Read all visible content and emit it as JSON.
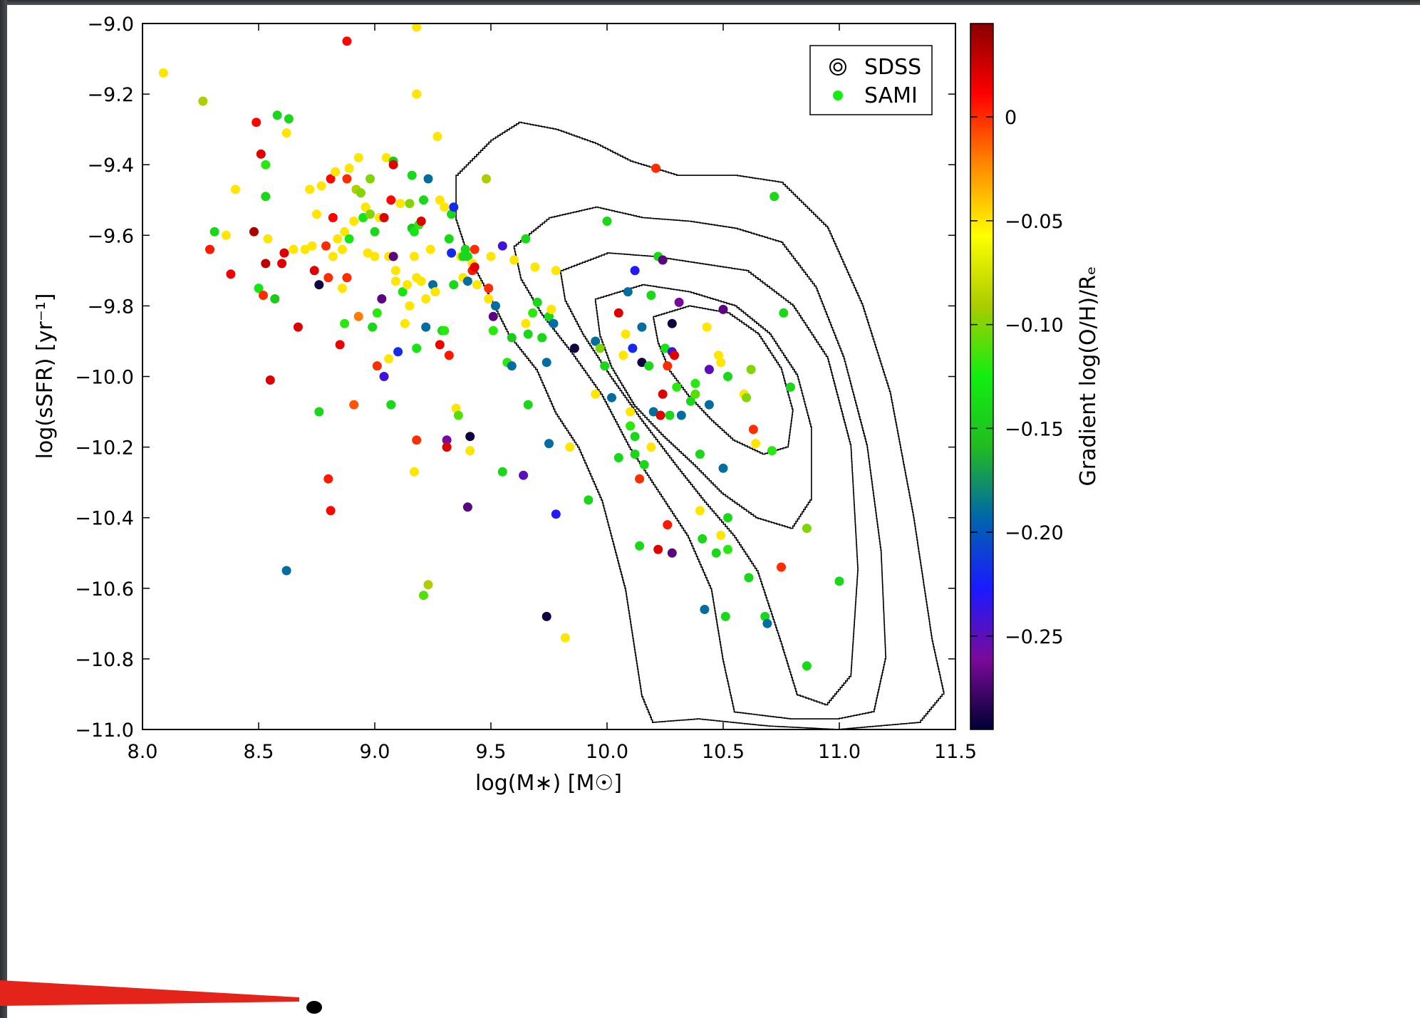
{
  "chart_data": {
    "type": "scatter",
    "xlabel": "log(M∗) [M☉]",
    "ylabel": "log(sSFR) [yr⁻¹]",
    "colorbar_label": "Gradient log(O/H)/Rₑ",
    "xlim": [
      8.0,
      11.5
    ],
    "ylim": [
      -11.0,
      -9.0
    ],
    "x_ticks": [
      "8.0",
      "8.5",
      "9.0",
      "9.5",
      "10.0",
      "10.5",
      "11.0",
      "11.5"
    ],
    "y_ticks": [
      "−11.0",
      "−10.8",
      "−10.6",
      "−10.4",
      "−10.2",
      "−10.0",
      "−9.8",
      "−9.6",
      "−9.4",
      "−9.2",
      "−9.0"
    ],
    "colorbar": {
      "range": [
        -0.295,
        0.045
      ],
      "ticks": [
        "0",
        "−0.05",
        "−0.10",
        "−0.15",
        "−0.20",
        "−0.25"
      ],
      "tick_values": [
        0,
        -0.05,
        -0.1,
        -0.15,
        -0.2,
        -0.25
      ],
      "stops": [
        "#000033",
        "#7a0a9a",
        "#1a1aff",
        "#0066aa",
        "#22bb22",
        "#11ee11",
        "#aacc00",
        "#ffff00",
        "#ff8800",
        "#ff0000",
        "#880000"
      ]
    },
    "legend": {
      "placement": "top-right",
      "entries": [
        {
          "label": "SDSS",
          "marker": "contour"
        },
        {
          "label": "SAMI",
          "marker": "dot",
          "color": "#11ee11"
        }
      ]
    },
    "grid": false,
    "sdss_contour_levels": 5,
    "sami_points": [
      [
        8.09,
        -9.14,
        -0.05
      ],
      [
        8.26,
        -9.22,
        -0.09
      ],
      [
        8.29,
        -9.64,
        0.005
      ],
      [
        8.31,
        -9.59,
        -0.14
      ],
      [
        8.36,
        -9.6,
        -0.05
      ],
      [
        8.38,
        -9.71,
        0.015
      ],
      [
        8.4,
        -9.47,
        -0.05
      ],
      [
        8.48,
        -9.59,
        0.035
      ],
      [
        8.49,
        -9.28,
        0.01
      ],
      [
        8.5,
        -9.75,
        -0.13
      ],
      [
        8.51,
        -9.37,
        0.02
      ],
      [
        8.52,
        -9.77,
        0.0
      ],
      [
        8.53,
        -9.68,
        0.03
      ],
      [
        8.53,
        -9.4,
        -0.12
      ],
      [
        8.53,
        -9.49,
        -0.14
      ],
      [
        8.54,
        -9.61,
        -0.05
      ],
      [
        8.55,
        -10.01,
        0.02
      ],
      [
        8.57,
        -9.78,
        -0.05
      ],
      [
        8.57,
        -9.78,
        -0.15
      ],
      [
        8.58,
        -9.26,
        -0.14
      ],
      [
        8.6,
        -9.68,
        0.02
      ],
      [
        8.61,
        -9.65,
        0.02
      ],
      [
        8.62,
        -10.55,
        -0.19
      ],
      [
        8.62,
        -9.31,
        -0.05
      ],
      [
        8.63,
        -9.27,
        -0.14
      ],
      [
        8.65,
        -9.64,
        -0.05
      ],
      [
        8.67,
        -9.86,
        0.02
      ],
      [
        8.7,
        -9.64,
        -0.05
      ],
      [
        8.72,
        -9.47,
        -0.05
      ],
      [
        8.73,
        -9.63,
        -0.05
      ],
      [
        8.74,
        -9.7,
        0.02
      ],
      [
        8.75,
        -9.54,
        -0.05
      ],
      [
        8.76,
        -10.1,
        -0.14
      ],
      [
        8.76,
        -9.74,
        -0.29
      ],
      [
        8.77,
        -9.46,
        -0.05
      ],
      [
        8.79,
        -9.63,
        0.0
      ],
      [
        8.8,
        -9.72,
        0.0
      ],
      [
        8.8,
        -10.29,
        0.005
      ],
      [
        8.81,
        -9.44,
        0.01
      ],
      [
        8.81,
        -10.38,
        0.01
      ],
      [
        8.82,
        -9.55,
        0.01
      ],
      [
        8.82,
        -9.66,
        -0.05
      ],
      [
        8.83,
        -9.42,
        -0.05
      ],
      [
        8.84,
        -9.61,
        -0.05
      ],
      [
        8.85,
        -9.91,
        0.015
      ],
      [
        8.86,
        -9.64,
        -0.05
      ],
      [
        8.86,
        -9.75,
        -0.05
      ],
      [
        8.87,
        -9.85,
        -0.12
      ],
      [
        8.87,
        -9.59,
        -0.05
      ],
      [
        8.88,
        -9.44,
        0.0
      ],
      [
        8.88,
        -9.72,
        0.0
      ],
      [
        8.88,
        -9.05,
        0.01
      ],
      [
        8.89,
        -9.61,
        -0.13
      ],
      [
        8.89,
        -9.41,
        -0.05
      ],
      [
        8.91,
        -10.08,
        -0.01
      ],
      [
        8.91,
        -9.56,
        -0.05
      ],
      [
        8.92,
        -9.47,
        -0.09
      ],
      [
        8.93,
        -9.83,
        -0.02
      ],
      [
        8.93,
        -9.38,
        -0.05
      ],
      [
        8.94,
        -9.48,
        -0.1
      ],
      [
        8.95,
        -9.55,
        -0.13
      ],
      [
        8.96,
        -9.52,
        -0.05
      ],
      [
        8.97,
        -9.65,
        -0.05
      ],
      [
        8.98,
        -9.54,
        -0.1
      ],
      [
        8.98,
        -9.44,
        -0.1
      ],
      [
        8.99,
        -9.86,
        -0.14
      ],
      [
        9.0,
        -9.59,
        -0.14
      ],
      [
        9.0,
        -9.66,
        -0.05
      ],
      [
        9.01,
        -9.82,
        -0.12
      ],
      [
        9.01,
        -9.97,
        0.0
      ],
      [
        9.02,
        -9.55,
        -0.05
      ],
      [
        9.03,
        -9.78,
        -0.27
      ],
      [
        9.04,
        -10.0,
        -0.24
      ],
      [
        9.04,
        -9.55,
        0.02
      ],
      [
        9.05,
        -9.38,
        -0.05
      ],
      [
        9.06,
        -9.66,
        -0.05
      ],
      [
        9.06,
        -9.95,
        -0.05
      ],
      [
        9.07,
        -10.08,
        -0.14
      ],
      [
        9.07,
        -9.5,
        0.01
      ],
      [
        9.08,
        -9.39,
        -0.15
      ],
      [
        9.08,
        -9.4,
        0.02
      ],
      [
        9.08,
        -9.66,
        -0.27
      ],
      [
        9.09,
        -9.7,
        -0.05
      ],
      [
        9.09,
        -9.73,
        -0.05
      ],
      [
        9.1,
        -9.93,
        -0.22
      ],
      [
        9.11,
        -9.51,
        -0.05
      ],
      [
        9.12,
        -9.76,
        -0.13
      ],
      [
        9.13,
        -9.85,
        -0.05
      ],
      [
        9.14,
        -9.74,
        -0.05
      ],
      [
        9.15,
        -9.8,
        -0.05
      ],
      [
        9.15,
        -9.51,
        -0.1
      ],
      [
        9.16,
        -9.43,
        -0.14
      ],
      [
        9.16,
        -9.58,
        -0.15
      ],
      [
        9.17,
        -9.59,
        -0.13
      ],
      [
        9.17,
        -9.66,
        -0.05
      ],
      [
        9.17,
        -10.27,
        -0.05
      ],
      [
        9.18,
        -9.72,
        -0.05
      ],
      [
        9.18,
        -10.18,
        0.0
      ],
      [
        9.18,
        -9.2,
        -0.05
      ],
      [
        9.18,
        -9.01,
        -0.05
      ],
      [
        9.18,
        -9.92,
        -0.13
      ],
      [
        9.19,
        -9.57,
        -0.12
      ],
      [
        9.2,
        -9.73,
        -0.05
      ],
      [
        9.2,
        -9.56,
        0.02
      ],
      [
        9.21,
        -9.5,
        -0.14
      ],
      [
        9.21,
        -10.62,
        -0.11
      ],
      [
        9.22,
        -9.78,
        -0.05
      ],
      [
        9.22,
        -9.86,
        -0.19
      ],
      [
        9.23,
        -10.59,
        -0.09
      ],
      [
        9.23,
        -9.44,
        -0.19
      ],
      [
        9.24,
        -9.64,
        -0.05
      ],
      [
        9.25,
        -9.74,
        -0.19
      ],
      [
        9.26,
        -9.76,
        -0.05
      ],
      [
        9.27,
        -9.32,
        -0.05
      ],
      [
        9.28,
        -9.5,
        -0.05
      ],
      [
        9.28,
        -9.91,
        0.015
      ],
      [
        9.29,
        -9.87,
        -0.14
      ],
      [
        9.3,
        -9.52,
        -0.05
      ],
      [
        9.3,
        -9.87,
        -0.12
      ],
      [
        9.31,
        -10.18,
        -0.26
      ],
      [
        9.31,
        -10.2,
        0.02
      ],
      [
        9.32,
        -9.61,
        -0.14
      ],
      [
        9.32,
        -9.94,
        0.005
      ],
      [
        9.33,
        -9.65,
        -0.22
      ],
      [
        9.33,
        -9.54,
        -0.14
      ],
      [
        9.34,
        -9.52,
        -0.22
      ],
      [
        9.34,
        -9.74,
        -0.14
      ],
      [
        9.35,
        -10.09,
        -0.05
      ],
      [
        9.36,
        -10.11,
        -0.11
      ],
      [
        9.37,
        -9.66,
        -0.05
      ],
      [
        9.38,
        -9.66,
        -0.14
      ],
      [
        9.38,
        -9.72,
        -0.05
      ],
      [
        9.39,
        -9.64,
        -0.14
      ],
      [
        9.4,
        -9.66,
        -0.14
      ],
      [
        9.4,
        -10.37,
        -0.27
      ],
      [
        9.4,
        -9.73,
        -0.19
      ],
      [
        9.41,
        -10.17,
        -0.29
      ],
      [
        9.41,
        -10.21,
        -0.05
      ],
      [
        9.42,
        -9.68,
        -0.05
      ],
      [
        9.42,
        -9.7,
        0.005
      ],
      [
        9.43,
        -9.69,
        0.02
      ],
      [
        9.43,
        -9.64,
        0.0
      ],
      [
        9.44,
        -9.74,
        -0.05
      ],
      [
        9.48,
        -9.44,
        -0.09
      ],
      [
        9.49,
        -9.75,
        0.0
      ],
      [
        9.49,
        -9.78,
        -0.05
      ],
      [
        9.5,
        -9.66,
        -0.05
      ],
      [
        9.51,
        -9.87,
        -0.12
      ],
      [
        9.51,
        -9.83,
        -0.27
      ],
      [
        9.52,
        -9.8,
        -0.19
      ],
      [
        9.55,
        -10.27,
        -0.14
      ],
      [
        9.55,
        -9.63,
        -0.24
      ],
      [
        9.57,
        -9.96,
        -0.12
      ],
      [
        9.59,
        -9.89,
        -0.15
      ],
      [
        9.59,
        -9.97,
        -0.19
      ],
      [
        9.6,
        -9.67,
        -0.05
      ],
      [
        9.64,
        -10.28,
        -0.25
      ],
      [
        9.65,
        -9.61,
        -0.14
      ],
      [
        9.65,
        -9.85,
        -0.05
      ],
      [
        9.66,
        -9.88,
        -0.14
      ],
      [
        9.66,
        -10.08,
        -0.14
      ],
      [
        9.68,
        -9.82,
        -0.12
      ],
      [
        9.69,
        -9.69,
        -0.05
      ],
      [
        9.7,
        -9.79,
        -0.14
      ],
      [
        9.72,
        -9.89,
        -0.14
      ],
      [
        9.74,
        -10.68,
        -0.29
      ],
      [
        9.74,
        -9.96,
        -0.19
      ],
      [
        9.75,
        -10.19,
        -0.19
      ],
      [
        9.75,
        -9.83,
        -0.14
      ],
      [
        9.76,
        -9.81,
        -0.05
      ],
      [
        9.77,
        -9.85,
        -0.19
      ],
      [
        9.78,
        -10.39,
        -0.23
      ],
      [
        9.78,
        -9.7,
        -0.05
      ],
      [
        9.82,
        -10.74,
        -0.05
      ],
      [
        9.84,
        -10.2,
        -0.05
      ],
      [
        9.86,
        -9.92,
        -0.29
      ],
      [
        9.92,
        -10.35,
        -0.14
      ],
      [
        9.95,
        -10.05,
        -0.05
      ],
      [
        9.95,
        -9.9,
        -0.19
      ],
      [
        9.97,
        -9.92,
        -0.1
      ],
      [
        9.99,
        -9.97,
        -0.14
      ],
      [
        10.0,
        -9.56,
        -0.14
      ],
      [
        10.02,
        -10.06,
        -0.19
      ],
      [
        10.05,
        -9.82,
        0.02
      ],
      [
        10.05,
        -10.23,
        -0.14
      ],
      [
        10.07,
        -9.94,
        -0.05
      ],
      [
        10.08,
        -9.88,
        -0.05
      ],
      [
        10.09,
        -9.76,
        -0.19
      ],
      [
        10.1,
        -10.1,
        -0.05
      ],
      [
        10.1,
        -10.14,
        -0.12
      ],
      [
        10.11,
        -9.92,
        -0.22
      ],
      [
        10.12,
        -9.7,
        -0.23
      ],
      [
        10.12,
        -10.22,
        -0.14
      ],
      [
        10.12,
        -10.17,
        -0.14
      ],
      [
        10.14,
        -10.29,
        0.0
      ],
      [
        10.14,
        -10.48,
        -0.14
      ],
      [
        10.15,
        -9.96,
        -0.29
      ],
      [
        10.15,
        -9.86,
        -0.19
      ],
      [
        10.16,
        -10.25,
        -0.14
      ],
      [
        10.18,
        -9.97,
        -0.14
      ],
      [
        10.19,
        -9.77,
        -0.14
      ],
      [
        10.19,
        -10.2,
        -0.05
      ],
      [
        10.2,
        -10.1,
        -0.19
      ],
      [
        10.21,
        -9.41,
        0.0
      ],
      [
        10.22,
        -10.49,
        0.02
      ],
      [
        10.22,
        -9.66,
        -0.14
      ],
      [
        10.23,
        -10.11,
        0.02
      ],
      [
        10.24,
        -9.67,
        -0.27
      ],
      [
        10.24,
        -10.05,
        0.02
      ],
      [
        10.25,
        -9.92,
        -0.13
      ],
      [
        10.26,
        -9.97,
        0.0
      ],
      [
        10.26,
        -10.42,
        0.005
      ],
      [
        10.27,
        -10.11,
        -0.14
      ],
      [
        10.28,
        -9.85,
        -0.29
      ],
      [
        10.28,
        -9.93,
        -0.24
      ],
      [
        10.28,
        -10.5,
        -0.27
      ],
      [
        10.29,
        -9.94,
        0.02
      ],
      [
        10.3,
        -10.03,
        -0.12
      ],
      [
        10.31,
        -9.79,
        -0.26
      ],
      [
        10.32,
        -10.11,
        -0.19
      ],
      [
        10.36,
        -10.07,
        -0.14
      ],
      [
        10.38,
        -10.02,
        -0.12
      ],
      [
        10.38,
        -10.05,
        -0.11
      ],
      [
        10.4,
        -10.22,
        -0.14
      ],
      [
        10.4,
        -10.38,
        -0.05
      ],
      [
        10.41,
        -10.46,
        -0.14
      ],
      [
        10.42,
        -10.66,
        -0.19
      ],
      [
        10.43,
        -9.86,
        -0.05
      ],
      [
        10.44,
        -10.08,
        -0.19
      ],
      [
        10.44,
        -9.98,
        -0.25
      ],
      [
        10.47,
        -10.5,
        -0.14
      ],
      [
        10.48,
        -9.94,
        -0.05
      ],
      [
        10.49,
        -9.96,
        -0.05
      ],
      [
        10.49,
        -10.45,
        -0.05
      ],
      [
        10.5,
        -10.26,
        -0.19
      ],
      [
        10.5,
        -9.81,
        -0.27
      ],
      [
        10.51,
        -10.68,
        -0.14
      ],
      [
        10.52,
        -10.49,
        -0.12
      ],
      [
        10.52,
        -10.4,
        -0.14
      ],
      [
        10.52,
        -10.0,
        -0.14
      ],
      [
        10.59,
        -10.05,
        -0.05
      ],
      [
        10.6,
        -10.06,
        -0.1
      ],
      [
        10.61,
        -10.57,
        -0.14
      ],
      [
        10.62,
        -9.98,
        -0.1
      ],
      [
        10.63,
        -10.15,
        0.0
      ],
      [
        10.64,
        -10.19,
        -0.05
      ],
      [
        10.68,
        -10.68,
        -0.14
      ],
      [
        10.69,
        -10.7,
        -0.19
      ],
      [
        10.71,
        -10.21,
        -0.12
      ],
      [
        10.72,
        -9.49,
        -0.14
      ],
      [
        10.75,
        -10.54,
        0.0
      ],
      [
        10.76,
        -9.82,
        -0.14
      ],
      [
        10.79,
        -10.03,
        -0.14
      ],
      [
        10.86,
        -10.43,
        -0.1
      ],
      [
        10.86,
        -10.82,
        -0.14
      ],
      [
        11.0,
        -10.58,
        -0.14
      ]
    ]
  }
}
